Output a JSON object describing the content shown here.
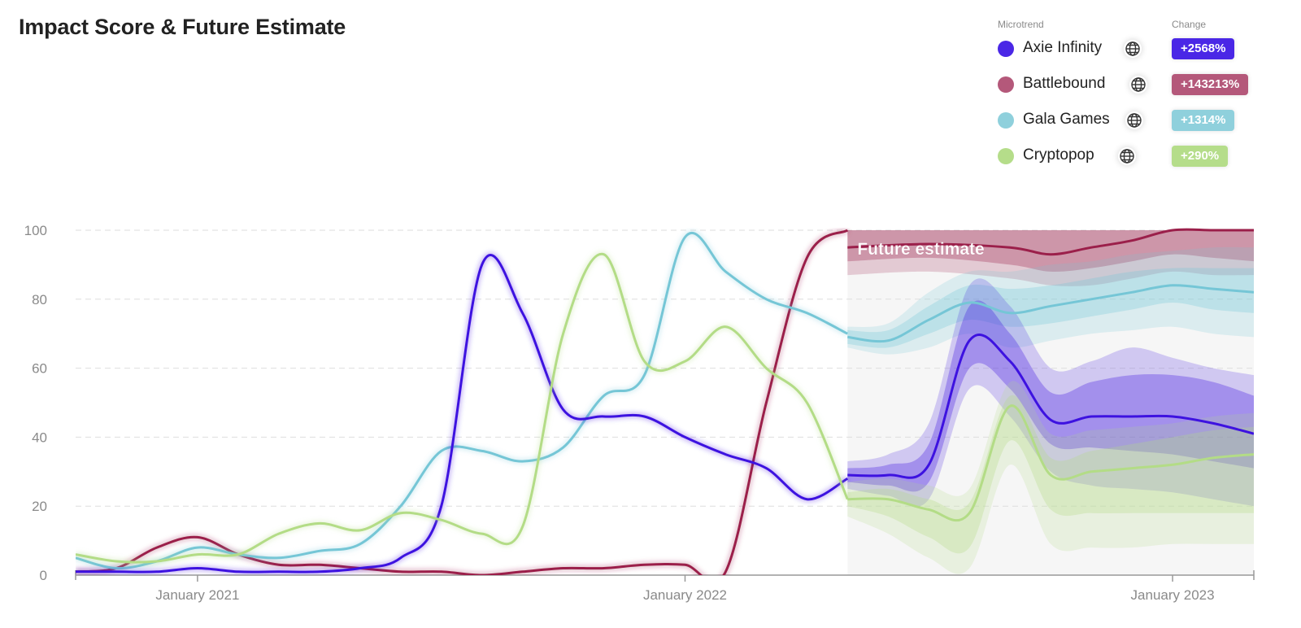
{
  "title": "Impact Score & Future Estimate",
  "legend": {
    "header_microtrend": "Microtrend",
    "header_change": "Change",
    "items": [
      {
        "name": "Axie Infinity",
        "change": "+2568%",
        "color": "#4a27e6",
        "icon": "globe-icon"
      },
      {
        "name": "Battlebound",
        "change": "+143213%",
        "color": "#b4587a",
        "icon": "globe-icon"
      },
      {
        "name": "Gala Games",
        "change": "+1314%",
        "color": "#8fd0dc",
        "icon": "globe-icon"
      },
      {
        "name": "Cryptopop",
        "change": "+290%",
        "color": "#b5dd8a",
        "icon": "globe-icon"
      }
    ]
  },
  "chart_data": {
    "type": "line",
    "ylim": [
      0,
      100
    ],
    "yticks": [
      0,
      20,
      40,
      60,
      80,
      100
    ],
    "xlim": [
      "2020-10",
      "2023-03"
    ],
    "xticks": [
      {
        "label": "January 2021",
        "t": "2021-01"
      },
      {
        "label": "January 2022",
        "t": "2022-01"
      },
      {
        "label": "January 2023",
        "t": "2023-01"
      }
    ],
    "grid": true,
    "future_start": "2022-05",
    "future_label": "Future estimate",
    "series": [
      {
        "name": "Battlebound",
        "color": "#9b1f4a",
        "actual": {
          "t": [
            "2020-10",
            "2020-11",
            "2020-12",
            "2021-01",
            "2021-02",
            "2021-03",
            "2021-04",
            "2021-05",
            "2021-06",
            "2021-07",
            "2021-08",
            "2021-09",
            "2021-10",
            "2021-11",
            "2021-12",
            "2022-01",
            "2022-02",
            "2022-03",
            "2022-04",
            "2022-05"
          ],
          "y": [
            1,
            2,
            8,
            11,
            6,
            3,
            3,
            2,
            1,
            1,
            0,
            1,
            2,
            2,
            3,
            3,
            1,
            50,
            92,
            100
          ]
        },
        "forecast": {
          "t": [
            "2022-05",
            "2022-07",
            "2022-09",
            "2022-10",
            "2022-11",
            "2022-12",
            "2023-01",
            "2023-02",
            "2023-03"
          ],
          "mid": [
            95,
            96,
            95,
            93,
            95,
            97,
            100,
            100,
            100
          ],
          "inner": [
            [
              91,
              100
            ],
            [
              92,
              100
            ],
            [
              90,
              100
            ],
            [
              88,
              100
            ],
            [
              89,
              100
            ],
            [
              91,
              100
            ],
            [
              93,
              100
            ],
            [
              92,
              100
            ],
            [
              91,
              100
            ]
          ],
          "outer": [
            [
              87,
              100
            ],
            [
              88,
              100
            ],
            [
              86,
              100
            ],
            [
              84,
              100
            ],
            [
              84,
              100
            ],
            [
              86,
              100
            ],
            [
              88,
              100
            ],
            [
              87,
              100
            ],
            [
              87,
              100
            ]
          ]
        }
      },
      {
        "name": "Gala Games",
        "color": "#75c6d6",
        "actual": {
          "t": [
            "2020-10",
            "2020-11",
            "2020-12",
            "2021-01",
            "2021-02",
            "2021-03",
            "2021-04",
            "2021-05",
            "2021-06",
            "2021-07",
            "2021-08",
            "2021-09",
            "2021-10",
            "2021-11",
            "2021-12",
            "2022-01",
            "2022-02",
            "2022-03",
            "2022-04",
            "2022-05"
          ],
          "y": [
            5,
            2,
            4,
            8,
            6,
            5,
            7,
            9,
            20,
            36,
            36,
            33,
            37,
            52,
            58,
            98,
            88,
            80,
            76,
            70
          ]
        },
        "forecast": {
          "t": [
            "2022-05",
            "2022-06",
            "2022-07",
            "2022-08",
            "2022-09",
            "2022-10",
            "2022-11",
            "2022-12",
            "2023-01",
            "2023-02",
            "2023-03"
          ],
          "mid": [
            69,
            68,
            74,
            79,
            76,
            78,
            80,
            82,
            84,
            83,
            82
          ],
          "inner": [
            [
              67,
              71
            ],
            [
              66,
              71
            ],
            [
              70,
              78
            ],
            [
              74,
              84
            ],
            [
              72,
              83
            ],
            [
              73,
              84
            ],
            [
              75,
              86
            ],
            [
              77,
              88
            ],
            [
              79,
              89
            ],
            [
              77,
              89
            ],
            [
              76,
              89
            ]
          ],
          "outer": [
            [
              66,
              72
            ],
            [
              64,
              73
            ],
            [
              66,
              82
            ],
            [
              70,
              88
            ],
            [
              66,
              88
            ],
            [
              68,
              90
            ],
            [
              70,
              91
            ],
            [
              71,
              93
            ],
            [
              72,
              94
            ],
            [
              70,
              95
            ],
            [
              69,
              95
            ]
          ]
        }
      },
      {
        "name": "Axie Infinity",
        "color": "#3d12e0",
        "actual": {
          "t": [
            "2020-10",
            "2020-11",
            "2020-12",
            "2021-01",
            "2021-02",
            "2021-03",
            "2021-04",
            "2021-05",
            "2021-06",
            "2021-07",
            "2021-08",
            "2021-09",
            "2021-10",
            "2021-11",
            "2021-12",
            "2022-01",
            "2022-02",
            "2022-03",
            "2022-04",
            "2022-05"
          ],
          "y": [
            1,
            1,
            1,
            2,
            1,
            1,
            1,
            2,
            5,
            20,
            90,
            76,
            48,
            46,
            46,
            40,
            35,
            31,
            22,
            28
          ]
        },
        "forecast": {
          "t": [
            "2022-05",
            "2022-06",
            "2022-07",
            "2022-08",
            "2022-09",
            "2022-10",
            "2022-11",
            "2022-12",
            "2023-01",
            "2023-02",
            "2023-03"
          ],
          "mid": [
            29,
            29,
            32,
            68,
            62,
            45,
            46,
            46,
            46,
            44,
            41
          ],
          "inner": [
            [
              27,
              31
            ],
            [
              26,
              32
            ],
            [
              27,
              38
            ],
            [
              60,
              78
            ],
            [
              54,
              70
            ],
            [
              38,
              53
            ],
            [
              37,
              56
            ],
            [
              36,
              58
            ],
            [
              35,
              58
            ],
            [
              33,
              56
            ],
            [
              31,
              52
            ]
          ],
          "outer": [
            [
              25,
              33
            ],
            [
              23,
              35
            ],
            [
              22,
              44
            ],
            [
              54,
              84
            ],
            [
              46,
              78
            ],
            [
              30,
              60
            ],
            [
              26,
              62
            ],
            [
              25,
              66
            ],
            [
              24,
              63
            ],
            [
              22,
              60
            ],
            [
              20,
              58
            ]
          ]
        }
      },
      {
        "name": "Cryptopop",
        "color": "#b3dc86",
        "actual": {
          "t": [
            "2020-10",
            "2020-11",
            "2020-12",
            "2021-01",
            "2021-02",
            "2021-03",
            "2021-04",
            "2021-05",
            "2021-06",
            "2021-07",
            "2021-08",
            "2021-09",
            "2021-10",
            "2021-11",
            "2021-12",
            "2022-01",
            "2022-02",
            "2022-03",
            "2022-04",
            "2022-05"
          ],
          "y": [
            6,
            4,
            4,
            6,
            6,
            12,
            15,
            13,
            18,
            16,
            12,
            14,
            70,
            93,
            62,
            62,
            72,
            60,
            50,
            22
          ]
        },
        "forecast": {
          "t": [
            "2022-05",
            "2022-06",
            "2022-07",
            "2022-08",
            "2022-09",
            "2022-10",
            "2022-11",
            "2022-12",
            "2023-01",
            "2023-02",
            "2023-03"
          ],
          "mid": [
            22,
            22,
            19,
            18,
            49,
            29,
            30,
            31,
            32,
            34,
            35
          ],
          "inner": [
            [
              20,
              24
            ],
            [
              17,
              25
            ],
            [
              11,
              22
            ],
            [
              8,
              21
            ],
            [
              39,
              52
            ],
            [
              19,
              34
            ],
            [
              18,
              36
            ],
            [
              18,
              38
            ],
            [
              18,
              40
            ],
            [
              18,
              42
            ],
            [
              18,
              43
            ]
          ],
          "outer": [
            [
              17,
              27
            ],
            [
              12,
              28
            ],
            [
              5,
              26
            ],
            [
              2,
              25
            ],
            [
              32,
              56
            ],
            [
              9,
              41
            ],
            [
              8,
              42
            ],
            [
              8,
              43
            ],
            [
              9,
              44
            ],
            [
              9,
              46
            ],
            [
              9,
              47
            ]
          ]
        }
      }
    ]
  }
}
